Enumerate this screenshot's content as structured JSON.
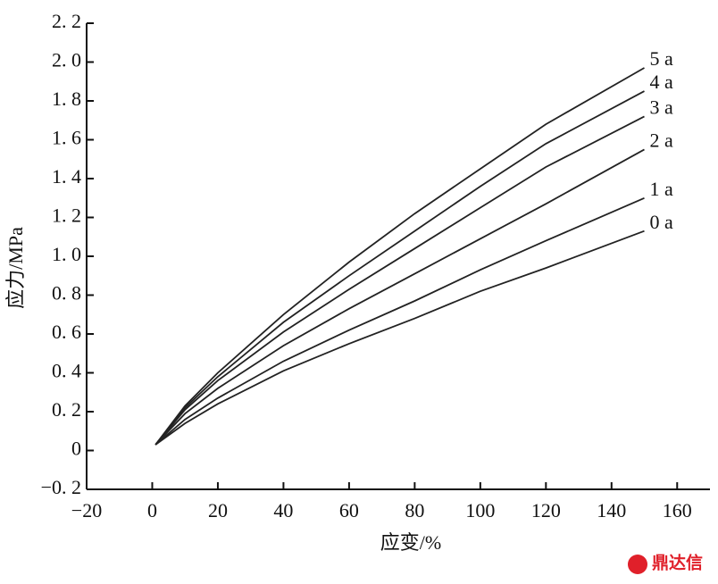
{
  "chart_data": {
    "type": "line",
    "x_label": "应变/%",
    "y_label": "应力/MPa",
    "watermark": "鼎达信",
    "x": [
      1,
      10,
      20,
      40,
      60,
      80,
      100,
      120,
      150
    ],
    "series": [
      {
        "name": "5 a",
        "color": "#222222",
        "values": [
          0.03,
          0.23,
          0.4,
          0.7,
          0.97,
          1.22,
          1.45,
          1.68,
          1.97
        ]
      },
      {
        "name": "4 a",
        "color": "#222222",
        "values": [
          0.03,
          0.22,
          0.38,
          0.66,
          0.9,
          1.13,
          1.36,
          1.58,
          1.85
        ]
      },
      {
        "name": "3 a",
        "color": "#222222",
        "values": [
          0.03,
          0.21,
          0.36,
          0.61,
          0.83,
          1.04,
          1.25,
          1.46,
          1.72
        ]
      },
      {
        "name": "2 a",
        "color": "#222222",
        "values": [
          0.03,
          0.19,
          0.32,
          0.54,
          0.73,
          0.91,
          1.09,
          1.27,
          1.55
        ]
      },
      {
        "name": "1 a",
        "color": "#222222",
        "values": [
          0.03,
          0.16,
          0.27,
          0.46,
          0.62,
          0.77,
          0.93,
          1.08,
          1.3
        ]
      },
      {
        "name": "0 a",
        "color": "#222222",
        "values": [
          0.03,
          0.14,
          0.24,
          0.41,
          0.55,
          0.68,
          0.82,
          0.94,
          1.13
        ]
      }
    ],
    "xlim": [
      -20,
      170
    ],
    "xticks": [
      {
        "value": -20,
        "label": "−20"
      },
      0,
      20,
      40,
      60,
      80,
      100,
      120,
      140,
      160
    ],
    "ylim": [
      -0.2,
      2.2
    ],
    "yticks": [
      {
        "value": -0.2,
        "label": "−0. 2"
      },
      0,
      {
        "value": 0.2,
        "label": "0. 2"
      },
      {
        "value": 0.4,
        "label": "0. 4"
      },
      {
        "value": 0.6,
        "label": "0. 6"
      },
      {
        "value": 0.8,
        "label": "0. 8"
      },
      {
        "value": 1.0,
        "label": "1. 0"
      },
      {
        "value": 1.2,
        "label": "1. 2"
      },
      {
        "value": 1.4,
        "label": "1. 4"
      },
      {
        "value": 1.6,
        "label": "1. 6"
      },
      {
        "value": 1.8,
        "label": "1. 8"
      },
      {
        "value": 2.0,
        "label": "2. 0"
      },
      {
        "value": 2.2,
        "label": "2. 2"
      }
    ],
    "grid": false
  }
}
